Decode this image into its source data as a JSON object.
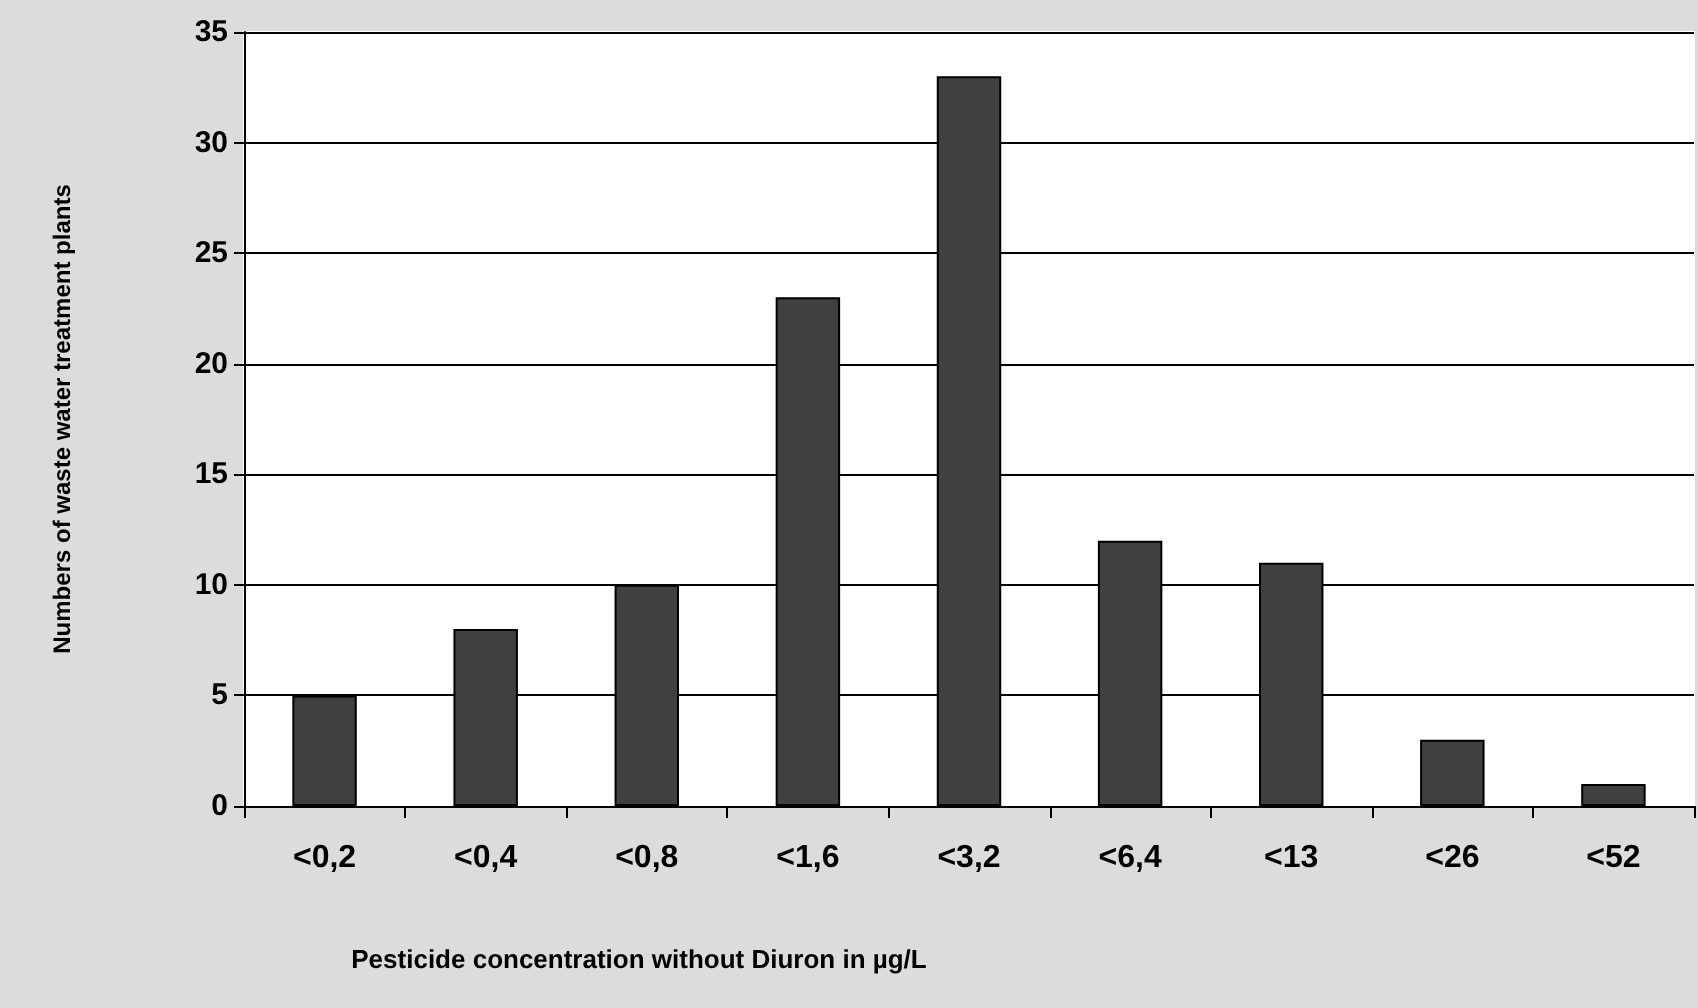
{
  "chart_data": {
    "type": "bar",
    "xlabel": "Pesticide concentration without Diuron in µg/L",
    "ylabel": "Numbers of waste water treatment plants",
    "categories": [
      "<0,2",
      "<0,4",
      "<0,8",
      "<1,6",
      "<3,2",
      "<6,4",
      "<13",
      "<26",
      "<52"
    ],
    "values": [
      5,
      8,
      10,
      23,
      33,
      12,
      11,
      3,
      1
    ],
    "color": "#404040",
    "ylim": [
      0,
      35
    ],
    "yticks": [
      0,
      5,
      10,
      15,
      20,
      25,
      30,
      35
    ],
    "grid": "y"
  }
}
